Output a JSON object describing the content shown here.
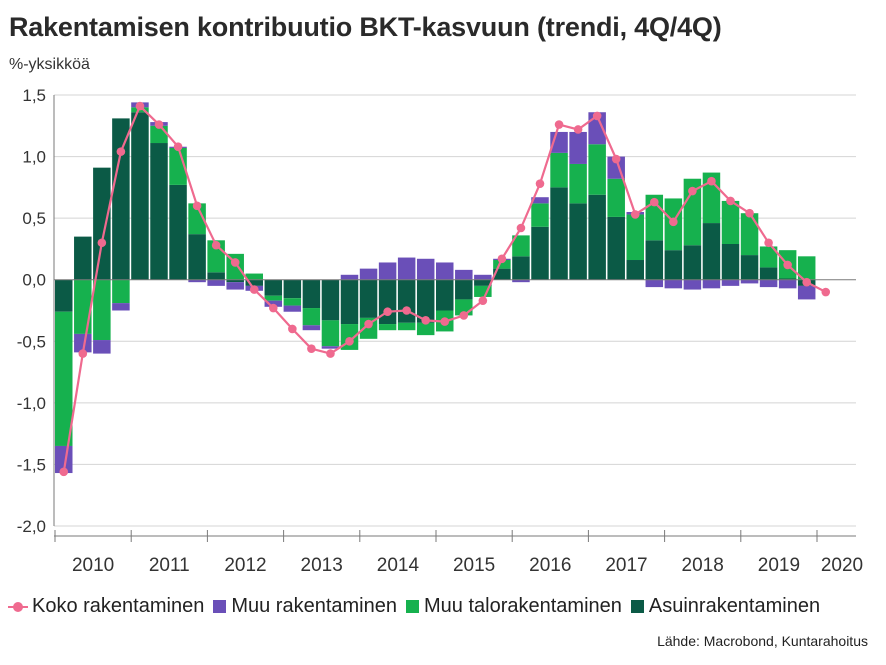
{
  "title": "Rakentamisen kontribuutio BKT-kasvuun (trendi, 4Q/4Q)",
  "unit_label": "%-yksikköä",
  "source": "Lähde: Macrobond, Kuntarahoitus",
  "colors": {
    "asuin": "#0b5a46",
    "talo": "#16b14e",
    "muu": "#6a4fb8",
    "koko": "#ef6a8f",
    "grid": "#d4d4d4",
    "axis": "#7a7a7a"
  },
  "legend": [
    {
      "name": "Koko rakentaminen",
      "color": "#ef6a8f",
      "kind": "line"
    },
    {
      "name": "Muu rakentaminen",
      "color": "#6a4fb8",
      "kind": "box"
    },
    {
      "name": "Muu talorakentaminen",
      "color": "#16b14e",
      "kind": "box"
    },
    {
      "name": "Asuinrakentaminen",
      "color": "#0b5a46",
      "kind": "box"
    }
  ],
  "chart_data": {
    "type": "bar",
    "stacked": true,
    "ylim": [
      -2.0,
      1.5
    ],
    "y_ticks": [
      "1,5",
      "1,0",
      "0,5",
      "0,0",
      "-0,5",
      "-1,0",
      "-1,5",
      "-2,0"
    ],
    "x_ticks": [
      "2010",
      "2011",
      "2012",
      "2013",
      "2014",
      "2015",
      "2016",
      "2017",
      "2018",
      "2019",
      "2020"
    ],
    "grid": true,
    "legend_position": "bottom",
    "periods": [
      "2010Q1",
      "2010Q2",
      "2010Q3",
      "2010Q4",
      "2011Q1",
      "2011Q2",
      "2011Q3",
      "2011Q4",
      "2012Q1",
      "2012Q2",
      "2012Q3",
      "2012Q4",
      "2013Q1",
      "2013Q2",
      "2013Q3",
      "2013Q4",
      "2014Q1",
      "2014Q2",
      "2014Q3",
      "2014Q4",
      "2015Q1",
      "2015Q2",
      "2015Q3",
      "2015Q4",
      "2016Q1",
      "2016Q2",
      "2016Q3",
      "2016Q4",
      "2017Q1",
      "2017Q2",
      "2017Q3",
      "2017Q4",
      "2018Q1",
      "2018Q2",
      "2018Q3",
      "2018Q4",
      "2019Q1",
      "2019Q2",
      "2019Q3",
      "2019Q4"
    ],
    "series": [
      {
        "name": "Asuinrakentaminen",
        "values": [
          -0.26,
          0.35,
          0.91,
          1.31,
          1.36,
          1.11,
          0.77,
          0.37,
          0.06,
          -0.02,
          -0.05,
          -0.13,
          -0.15,
          -0.23,
          -0.33,
          -0.36,
          -0.31,
          -0.36,
          -0.35,
          -0.35,
          -0.25,
          -0.16,
          -0.05,
          0.09,
          0.19,
          0.43,
          0.75,
          0.62,
          0.69,
          0.51,
          0.16,
          0.32,
          0.24,
          0.28,
          0.46,
          0.29,
          0.2,
          0.1,
          0.01,
          -0.05
        ]
      },
      {
        "name": "Muu talorakentaminen",
        "values": [
          -1.09,
          -0.44,
          -0.49,
          -0.19,
          0.04,
          0.14,
          0.3,
          0.25,
          0.26,
          0.21,
          0.05,
          -0.04,
          -0.06,
          -0.14,
          -0.21,
          -0.21,
          -0.17,
          -0.05,
          -0.06,
          -0.1,
          -0.17,
          -0.13,
          -0.09,
          0.07,
          0.17,
          0.19,
          0.28,
          0.32,
          0.41,
          0.31,
          0.37,
          0.37,
          0.42,
          0.54,
          0.41,
          0.35,
          0.34,
          0.17,
          0.23,
          0.19
        ]
      },
      {
        "name": "Muu rakentaminen",
        "values": [
          -0.22,
          -0.15,
          -0.11,
          -0.06,
          0.04,
          0.03,
          0.01,
          -0.02,
          -0.05,
          -0.06,
          -0.04,
          -0.05,
          -0.05,
          -0.04,
          -0.02,
          0.04,
          0.09,
          0.14,
          0.18,
          0.17,
          0.14,
          0.08,
          0.04,
          0.01,
          -0.02,
          0.05,
          0.17,
          0.26,
          0.26,
          0.18,
          0.02,
          -0.06,
          -0.07,
          -0.08,
          -0.07,
          -0.05,
          -0.03,
          -0.06,
          -0.07,
          -0.11
        ]
      },
      {
        "name": "Koko rakentaminen",
        "kind": "line",
        "values": [
          -1.56,
          -0.6,
          0.3,
          1.04,
          1.41,
          1.26,
          1.08,
          0.6,
          0.28,
          0.14,
          -0.08,
          -0.23,
          -0.4,
          -0.56,
          -0.6,
          -0.5,
          -0.36,
          -0.26,
          -0.25,
          -0.33,
          -0.34,
          -0.29,
          -0.17,
          0.17,
          0.42,
          0.78,
          1.26,
          1.22,
          1.33,
          0.98,
          0.53,
          0.63,
          0.47,
          0.72,
          0.8,
          0.64,
          0.54,
          0.3,
          0.12,
          -0.02,
          -0.1
        ]
      }
    ],
    "line_x_offset_last": true
  }
}
